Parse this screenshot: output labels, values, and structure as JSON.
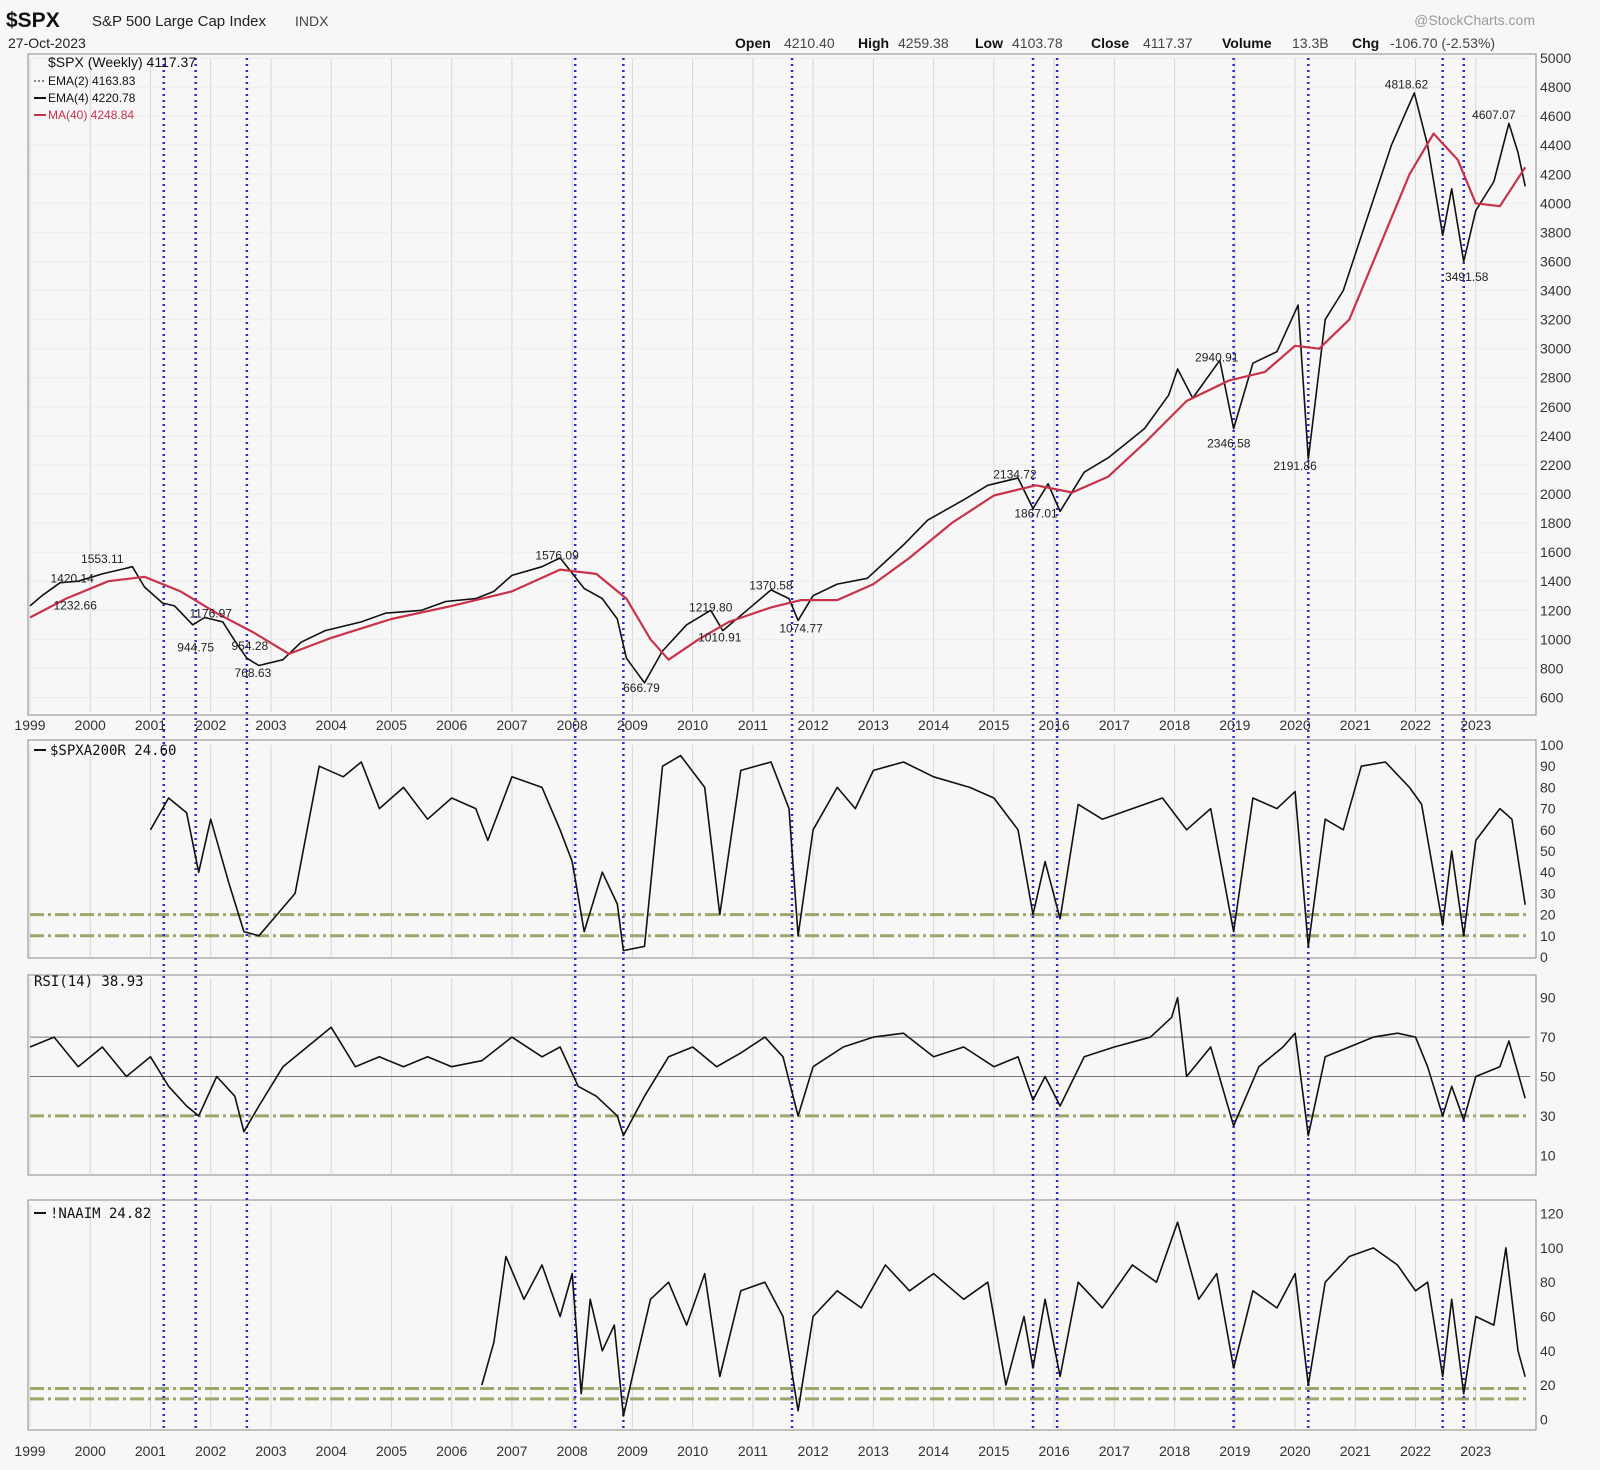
{
  "header": {
    "symbol": "$SPX",
    "name": "S&P 500 Large Cap Index",
    "exchange": "INDX",
    "date": "27-Oct-2023",
    "watermark": "@StockCharts.com",
    "open_label": "Open",
    "open": "4210.40",
    "high_label": "High",
    "high": "4259.38",
    "low_label": "Low",
    "low": "4103.78",
    "close_label": "Close",
    "close": "4117.37",
    "volume_label": "Volume",
    "volume": "13.3B",
    "chg_label": "Chg",
    "chg": "-106.70 (-2.53%)"
  },
  "legend": {
    "main": "$SPX (Weekly) 4117.37",
    "ema2": "EMA(2) 4163.83",
    "ema4": "EMA(4) 4220.78",
    "ma40": "MA(40) 4248.84",
    "breadth": "$SPXA200R 24.60",
    "rsi": "RSI(14) 38.93",
    "naaim": "!NAAIM 24.82"
  },
  "colors": {
    "background": "#f7f7f7",
    "price": "#111111",
    "ma40": "#c8324b",
    "signal_line": "#2a2acc",
    "threshold_line": "#9aa86a",
    "grid": "#d6d6d6"
  },
  "chart_data": [
    {
      "type": "line",
      "panel": "price",
      "ylim": [
        500,
        5000
      ],
      "yticks": [
        600,
        800,
        1000,
        1200,
        1400,
        1600,
        1800,
        2000,
        2200,
        2400,
        2600,
        2800,
        3000,
        3200,
        3400,
        3600,
        3800,
        4000,
        4200,
        4400,
        4600,
        4800,
        5000
      ],
      "xlim": [
        1999.0,
        2023.9
      ],
      "x_tick_labels": [
        "1999",
        "2000",
        "2001",
        "2002",
        "2003",
        "2004",
        "2005",
        "2006",
        "2007",
        "2008",
        "2009",
        "2010",
        "2011",
        "2012",
        "2013",
        "2014",
        "2015",
        "2016",
        "2017",
        "2018",
        "2019",
        "2020",
        "2021",
        "2022",
        "2023"
      ],
      "series": [
        {
          "name": "$SPX (Weekly)",
          "x": [
            1999.0,
            1999.2,
            1999.5,
            1999.8,
            2000.2,
            2000.5,
            2000.7,
            2000.9,
            2001.2,
            2001.4,
            2001.7,
            2001.9,
            2002.2,
            2002.4,
            2002.6,
            2002.8,
            2003.2,
            2003.5,
            2003.9,
            2004.5,
            2004.9,
            2005.5,
            2005.9,
            2006.4,
            2006.7,
            2007.0,
            2007.5,
            2007.8,
            2008.2,
            2008.5,
            2008.75,
            2008.9,
            2009.2,
            2009.5,
            2009.9,
            2010.3,
            2010.5,
            2010.9,
            2011.3,
            2011.6,
            2011.75,
            2012.0,
            2012.4,
            2012.9,
            2013.5,
            2013.9,
            2014.5,
            2014.9,
            2015.4,
            2015.65,
            2015.9,
            2016.1,
            2016.5,
            2016.9,
            2017.5,
            2017.9,
            2018.05,
            2018.3,
            2018.75,
            2018.98,
            2019.3,
            2019.7,
            2020.05,
            2020.22,
            2020.5,
            2020.8,
            2021.2,
            2021.6,
            2021.98,
            2022.2,
            2022.45,
            2022.6,
            2022.8,
            2023.0,
            2023.3,
            2023.55,
            2023.7,
            2023.82
          ],
          "values": [
            1230,
            1300,
            1390,
            1400,
            1450,
            1480,
            1500,
            1360,
            1250,
            1230,
            1100,
            1150,
            1120,
            990,
            870,
            820,
            860,
            980,
            1060,
            1120,
            1180,
            1200,
            1260,
            1280,
            1330,
            1440,
            1500,
            1560,
            1350,
            1280,
            1140,
            870,
            700,
            920,
            1100,
            1200,
            1060,
            1200,
            1340,
            1280,
            1130,
            1300,
            1380,
            1420,
            1650,
            1820,
            1960,
            2060,
            2110,
            1900,
            2070,
            1880,
            2150,
            2250,
            2450,
            2680,
            2860,
            2660,
            2920,
            2450,
            2900,
            2980,
            3300,
            2240,
            3200,
            3400,
            3900,
            4400,
            4760,
            4400,
            3780,
            4100,
            3600,
            3950,
            4150,
            4550,
            4350,
            4117
          ]
        },
        {
          "name": "MA(40)",
          "x": [
            1999.0,
            1999.6,
            2000.3,
            2000.9,
            2001.5,
            2002.1,
            2002.7,
            2003.3,
            2004.0,
            2005.0,
            2006.0,
            2007.0,
            2007.8,
            2008.4,
            2008.9,
            2009.3,
            2009.6,
            2010.1,
            2010.6,
            2011.3,
            2011.8,
            2012.4,
            2013.0,
            2013.6,
            2014.3,
            2015.0,
            2015.7,
            2016.3,
            2016.9,
            2017.5,
            2018.2,
            2018.9,
            2019.5,
            2020.0,
            2020.4,
            2020.9,
            2021.4,
            2021.9,
            2022.3,
            2022.7,
            2023.0,
            2023.4,
            2023.82
          ],
          "values": [
            1150,
            1280,
            1400,
            1430,
            1330,
            1180,
            1050,
            900,
            1010,
            1140,
            1230,
            1330,
            1480,
            1450,
            1280,
            1000,
            860,
            1000,
            1120,
            1220,
            1270,
            1270,
            1380,
            1560,
            1800,
            1990,
            2060,
            2010,
            2120,
            2350,
            2640,
            2780,
            2840,
            3020,
            3000,
            3200,
            3700,
            4200,
            4480,
            4300,
            4000,
            3980,
            4248
          ]
        }
      ],
      "annotations": [
        {
          "x": 1999.7,
          "value": 1420.14,
          "text": "1420.14"
        },
        {
          "x": 2000.2,
          "value": 1553.11,
          "text": "1553.11"
        },
        {
          "x": 1999.75,
          "value": 1232.66,
          "text": "1232.66"
        },
        {
          "x": 2002.0,
          "value": 1176.97,
          "text": "1176.97"
        },
        {
          "x": 2001.75,
          "value": 944.75,
          "text": "944.75"
        },
        {
          "x": 2002.65,
          "value": 954.28,
          "text": "954.28"
        },
        {
          "x": 2002.7,
          "value": 768.63,
          "text": "768.63"
        },
        {
          "x": 2007.75,
          "value": 1576.09,
          "text": "1576.09"
        },
        {
          "x": 2009.15,
          "value": 666.79,
          "text": "666.79"
        },
        {
          "x": 2010.3,
          "value": 1219.8,
          "text": "1219.80"
        },
        {
          "x": 2010.45,
          "value": 1010.91,
          "text": "1010.91"
        },
        {
          "x": 2011.3,
          "value": 1370.58,
          "text": "1370.58"
        },
        {
          "x": 2011.8,
          "value": 1074.77,
          "text": "1074.77"
        },
        {
          "x": 2015.35,
          "value": 2134.72,
          "text": "2134.72"
        },
        {
          "x": 2015.7,
          "value": 1867.01,
          "text": "1867.01"
        },
        {
          "x": 2018.7,
          "value": 2940.91,
          "text": "2940.91"
        },
        {
          "x": 2018.9,
          "value": 2346.58,
          "text": "2346.58"
        },
        {
          "x": 2020.0,
          "value": 2191.86,
          "text": "2191.86"
        },
        {
          "x": 2021.85,
          "value": 4818.62,
          "text": "4818.62"
        },
        {
          "x": 2023.3,
          "value": 4607.07,
          "text": "4607.07"
        },
        {
          "x": 2022.85,
          "value": 3491.58,
          "text": "3491.58"
        }
      ]
    },
    {
      "type": "line",
      "panel": "breadth",
      "ylim": [
        0,
        100
      ],
      "yticks": [
        0,
        10,
        20,
        30,
        40,
        50,
        60,
        70,
        80,
        90,
        100
      ],
      "thresholds": [
        20,
        10
      ],
      "series": [
        {
          "name": "$SPXA200R",
          "x": [
            2001.0,
            2001.3,
            2001.6,
            2001.8,
            2002.0,
            2002.3,
            2002.55,
            2002.8,
            2003.1,
            2003.4,
            2003.8,
            2004.2,
            2004.5,
            2004.8,
            2005.2,
            2005.6,
            2006.0,
            2006.4,
            2006.6,
            2007.0,
            2007.5,
            2007.8,
            2008.0,
            2008.2,
            2008.5,
            2008.75,
            2008.85,
            2009.2,
            2009.5,
            2009.8,
            2010.2,
            2010.45,
            2010.8,
            2011.3,
            2011.6,
            2011.75,
            2012.0,
            2012.4,
            2012.7,
            2013.0,
            2013.5,
            2014.0,
            2014.6,
            2015.0,
            2015.4,
            2015.65,
            2015.85,
            2016.1,
            2016.4,
            2016.8,
            2017.3,
            2017.8,
            2018.2,
            2018.6,
            2018.98,
            2019.3,
            2019.7,
            2020.0,
            2020.22,
            2020.5,
            2020.8,
            2021.1,
            2021.5,
            2021.9,
            2022.1,
            2022.45,
            2022.6,
            2022.8,
            2023.0,
            2023.4,
            2023.6,
            2023.82
          ],
          "values": [
            60,
            75,
            68,
            40,
            65,
            35,
            12,
            10,
            20,
            30,
            90,
            85,
            92,
            70,
            80,
            65,
            75,
            70,
            55,
            85,
            80,
            60,
            45,
            12,
            40,
            25,
            3,
            5,
            90,
            95,
            80,
            20,
            88,
            92,
            70,
            10,
            60,
            80,
            70,
            88,
            92,
            85,
            80,
            75,
            60,
            20,
            45,
            18,
            72,
            65,
            70,
            75,
            60,
            70,
            12,
            75,
            70,
            78,
            5,
            65,
            60,
            90,
            92,
            80,
            72,
            15,
            50,
            10,
            55,
            70,
            65,
            24.6
          ]
        }
      ]
    },
    {
      "type": "line",
      "panel": "rsi",
      "ylim": [
        0,
        100
      ],
      "yticks": [
        10,
        30,
        50,
        70,
        90
      ],
      "thresholds": [
        70,
        50,
        30
      ],
      "series": [
        {
          "name": "RSI(14)",
          "x": [
            1999.0,
            1999.4,
            1999.8,
            2000.2,
            2000.6,
            2001.0,
            2001.3,
            2001.6,
            2001.8,
            2002.1,
            2002.4,
            2002.55,
            2002.8,
            2003.2,
            2003.6,
            2004.0,
            2004.4,
            2004.8,
            2005.2,
            2005.6,
            2006.0,
            2006.5,
            2007.0,
            2007.5,
            2007.8,
            2008.1,
            2008.4,
            2008.75,
            2008.85,
            2009.2,
            2009.6,
            2010.0,
            2010.4,
            2010.8,
            2011.2,
            2011.5,
            2011.75,
            2012.0,
            2012.5,
            2013.0,
            2013.5,
            2014.0,
            2014.5,
            2015.0,
            2015.4,
            2015.65,
            2015.85,
            2016.1,
            2016.5,
            2017.0,
            2017.6,
            2017.95,
            2018.05,
            2018.2,
            2018.6,
            2018.98,
            2019.4,
            2019.8,
            2020.0,
            2020.22,
            2020.5,
            2020.9,
            2021.3,
            2021.7,
            2022.0,
            2022.2,
            2022.45,
            2022.6,
            2022.8,
            2023.0,
            2023.4,
            2023.55,
            2023.82
          ],
          "values": [
            65,
            70,
            55,
            65,
            50,
            60,
            45,
            35,
            30,
            50,
            40,
            22,
            35,
            55,
            65,
            75,
            55,
            60,
            55,
            60,
            55,
            58,
            70,
            60,
            65,
            45,
            40,
            30,
            20,
            40,
            60,
            65,
            55,
            62,
            70,
            60,
            30,
            55,
            65,
            70,
            72,
            60,
            65,
            55,
            60,
            38,
            50,
            35,
            60,
            65,
            70,
            80,
            90,
            50,
            65,
            25,
            55,
            65,
            72,
            20,
            60,
            65,
            70,
            72,
            70,
            55,
            30,
            45,
            28,
            50,
            55,
            68,
            38.93
          ]
        }
      ]
    },
    {
      "type": "line",
      "panel": "naaim",
      "ylim": [
        -5,
        125
      ],
      "yticks": [
        0,
        20,
        40,
        60,
        80,
        100,
        120
      ],
      "thresholds": [
        18,
        12
      ],
      "series": [
        {
          "name": "!NAAIM",
          "x": [
            2006.5,
            2006.7,
            2006.9,
            2007.2,
            2007.5,
            2007.8,
            2008.0,
            2008.15,
            2008.3,
            2008.5,
            2008.7,
            2008.85,
            2009.0,
            2009.3,
            2009.6,
            2009.9,
            2010.2,
            2010.45,
            2010.8,
            2011.2,
            2011.5,
            2011.75,
            2012.0,
            2012.4,
            2012.8,
            2013.2,
            2013.6,
            2014.0,
            2014.5,
            2014.9,
            2015.2,
            2015.5,
            2015.65,
            2015.85,
            2016.1,
            2016.4,
            2016.8,
            2017.3,
            2017.7,
            2018.05,
            2018.4,
            2018.7,
            2018.98,
            2019.3,
            2019.7,
            2020.0,
            2020.22,
            2020.5,
            2020.9,
            2021.3,
            2021.7,
            2022.0,
            2022.2,
            2022.45,
            2022.6,
            2022.8,
            2023.0,
            2023.3,
            2023.5,
            2023.7,
            2023.82
          ],
          "values": [
            20,
            45,
            95,
            70,
            90,
            60,
            85,
            15,
            70,
            40,
            55,
            2,
            25,
            70,
            80,
            55,
            85,
            25,
            75,
            80,
            60,
            5,
            60,
            75,
            65,
            90,
            75,
            85,
            70,
            80,
            20,
            60,
            30,
            70,
            25,
            80,
            65,
            90,
            80,
            115,
            70,
            85,
            30,
            75,
            65,
            85,
            20,
            80,
            95,
            100,
            90,
            75,
            80,
            25,
            70,
            15,
            60,
            55,
            100,
            40,
            24.82
          ]
        }
      ]
    }
  ],
  "signal_dates": [
    2001.22,
    2001.75,
    2002.6,
    2008.05,
    2008.85,
    2011.65,
    2015.65,
    2016.05,
    2018.98,
    2020.22,
    2022.45,
    2022.8
  ]
}
